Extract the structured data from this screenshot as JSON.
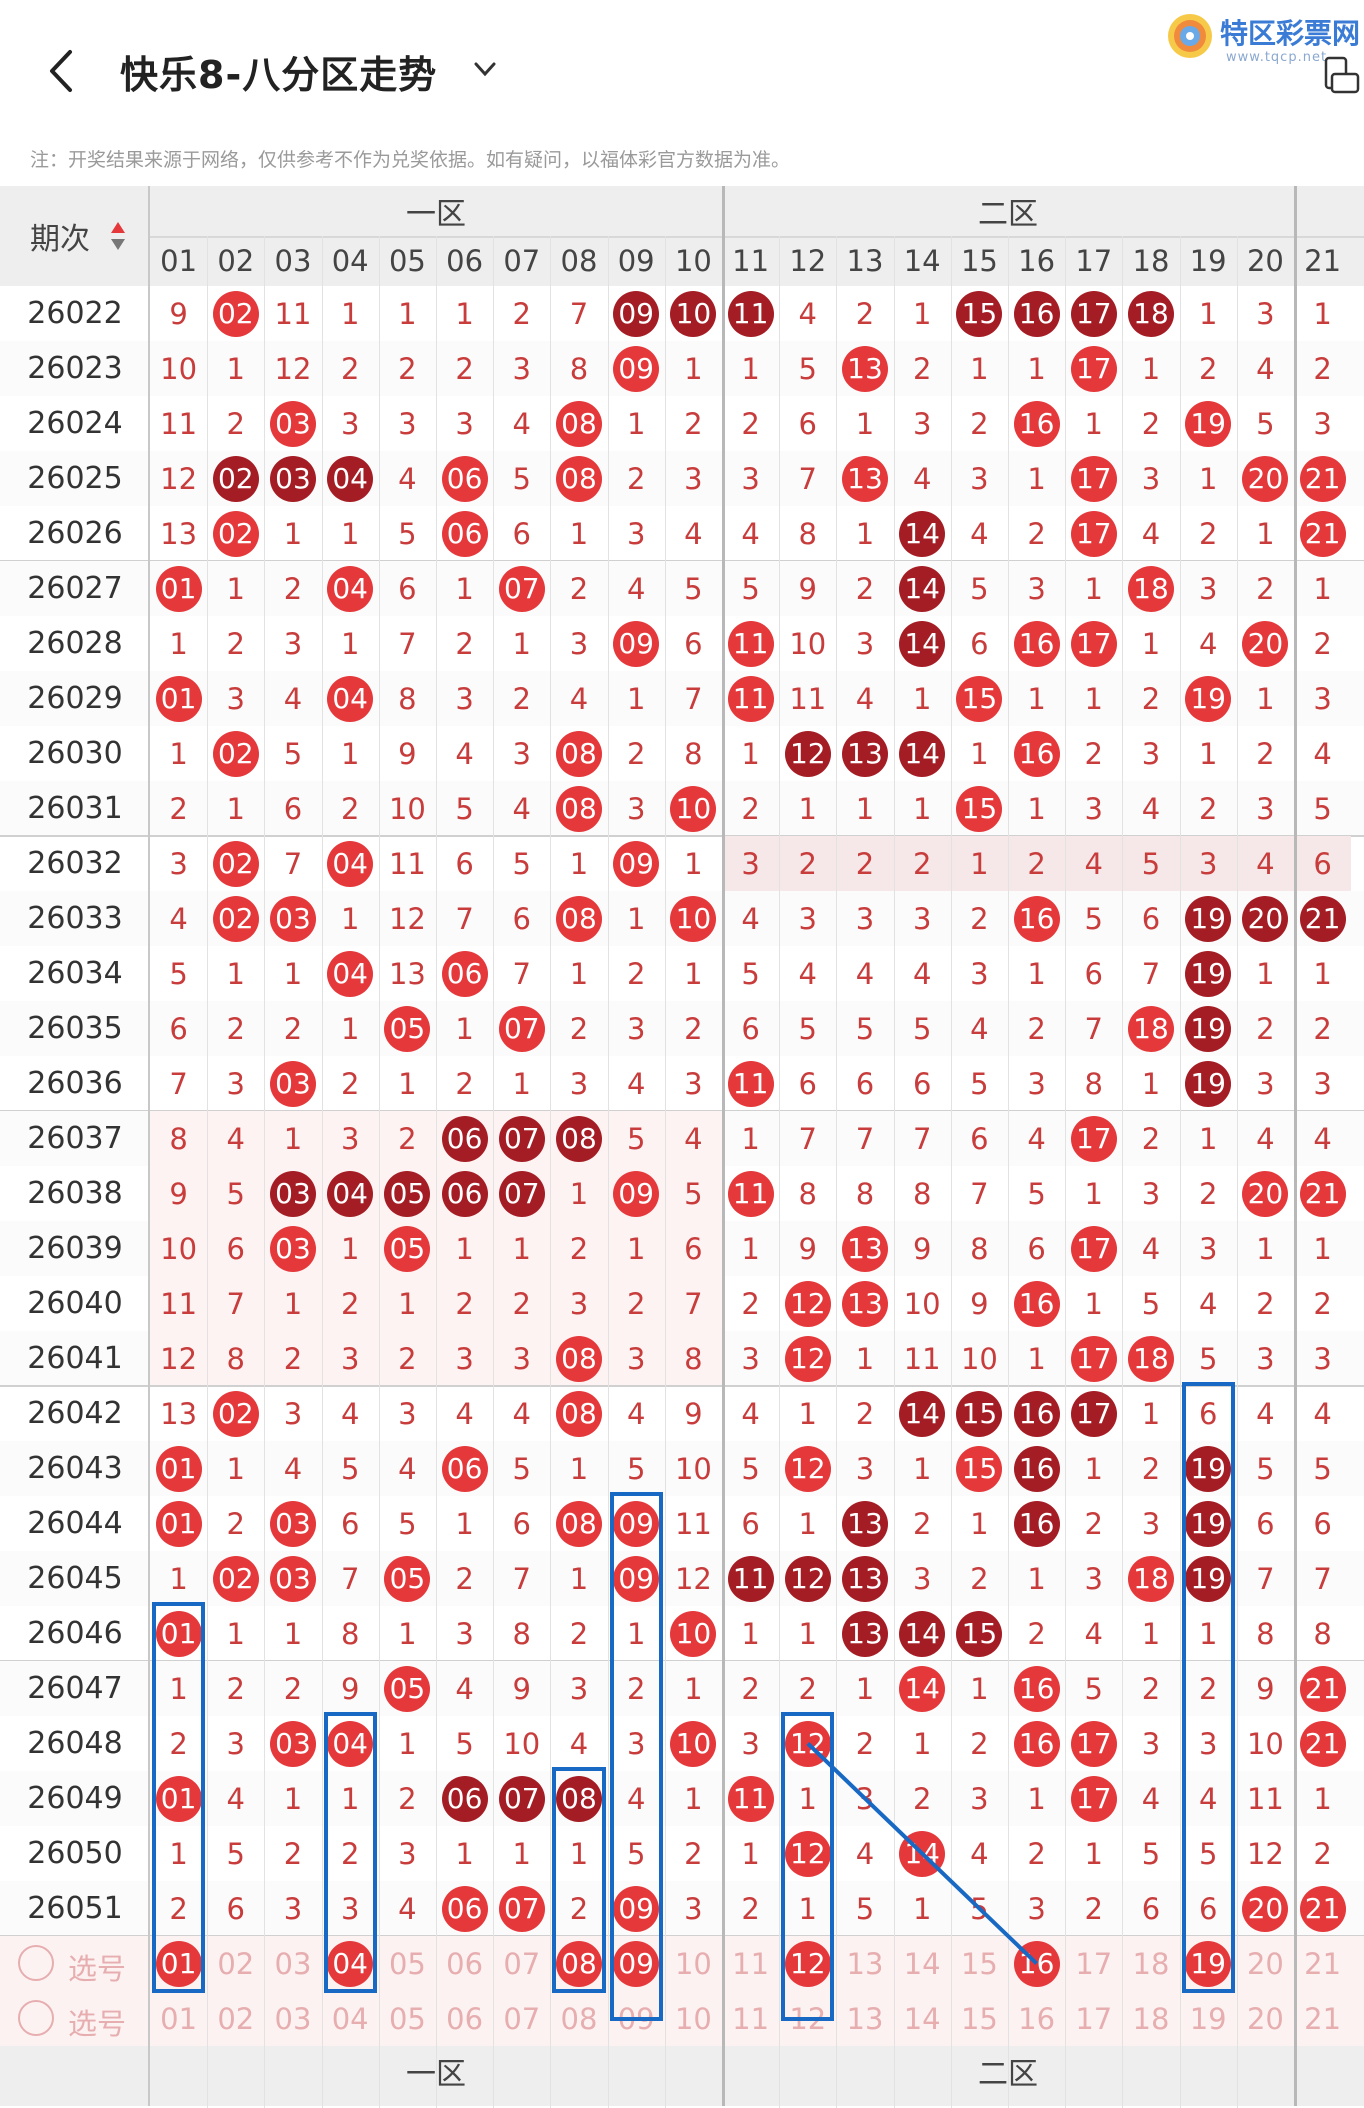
{
  "header": {
    "title": "快乐8-八分区走势",
    "logo_text": "特区彩票网",
    "logo_url": "www.tqcp.net",
    "notice": "注：开奖结果来源于网络，仅供参考不作为兑奖依据。如有疑问，以福体彩官方数据为准。"
  },
  "table": {
    "period_header": "期次",
    "zones": [
      "一区",
      "二区"
    ],
    "columns": [
      "01",
      "02",
      "03",
      "04",
      "05",
      "06",
      "07",
      "08",
      "09",
      "10",
      "11",
      "12",
      "13",
      "14",
      "15",
      "16",
      "17",
      "18",
      "19",
      "20",
      "21"
    ],
    "rows": [
      {
        "period": "26022",
        "cells": [
          "9",
          "02",
          "11",
          "1",
          "1",
          "1",
          "2",
          "7",
          "09",
          "10",
          "11",
          "4",
          "2",
          "1",
          "15",
          "16",
          "17",
          "18",
          "1",
          "3",
          "1"
        ],
        "hits": [
          2,
          9,
          10,
          11,
          15,
          16,
          17,
          18
        ],
        "dark": [
          9,
          10,
          11,
          15,
          16,
          17,
          18
        ]
      },
      {
        "period": "26023",
        "cells": [
          "10",
          "1",
          "12",
          "2",
          "2",
          "2",
          "3",
          "8",
          "09",
          "1",
          "1",
          "5",
          "13",
          "2",
          "1",
          "1",
          "17",
          "1",
          "2",
          "4",
          "2"
        ],
        "hits": [
          9,
          13,
          17
        ],
        "dark": []
      },
      {
        "period": "26024",
        "cells": [
          "11",
          "2",
          "03",
          "3",
          "3",
          "3",
          "4",
          "08",
          "1",
          "2",
          "2",
          "6",
          "1",
          "3",
          "2",
          "16",
          "1",
          "2",
          "19",
          "5",
          "3"
        ],
        "hits": [
          3,
          8,
          16,
          19
        ],
        "dark": []
      },
      {
        "period": "26025",
        "cells": [
          "12",
          "02",
          "03",
          "04",
          "4",
          "06",
          "5",
          "08",
          "2",
          "3",
          "3",
          "7",
          "13",
          "4",
          "3",
          "1",
          "17",
          "3",
          "1",
          "20",
          "21"
        ],
        "hits": [
          2,
          3,
          4,
          6,
          8,
          13,
          17,
          20,
          21
        ],
        "dark": [
          2,
          3,
          4
        ]
      },
      {
        "period": "26026",
        "cells": [
          "13",
          "02",
          "1",
          "1",
          "5",
          "06",
          "6",
          "1",
          "3",
          "4",
          "4",
          "8",
          "1",
          "14",
          "4",
          "2",
          "17",
          "4",
          "2",
          "1",
          "21"
        ],
        "hits": [
          2,
          6,
          14,
          17,
          21
        ],
        "dark": [
          14
        ]
      },
      {
        "period": "26027",
        "cells": [
          "01",
          "1",
          "2",
          "04",
          "6",
          "1",
          "07",
          "2",
          "4",
          "5",
          "5",
          "9",
          "2",
          "14",
          "5",
          "3",
          "1",
          "18",
          "3",
          "2",
          "1"
        ],
        "hits": [
          1,
          4,
          7,
          14,
          18
        ],
        "dark": [
          14
        ]
      },
      {
        "period": "26028",
        "cells": [
          "1",
          "2",
          "3",
          "1",
          "7",
          "2",
          "1",
          "3",
          "09",
          "6",
          "11",
          "10",
          "3",
          "14",
          "6",
          "16",
          "17",
          "1",
          "4",
          "20",
          "2"
        ],
        "hits": [
          9,
          11,
          14,
          16,
          17,
          20
        ],
        "dark": [
          14
        ]
      },
      {
        "period": "26029",
        "cells": [
          "01",
          "3",
          "4",
          "04",
          "8",
          "3",
          "2",
          "4",
          "1",
          "7",
          "11",
          "11",
          "4",
          "1",
          "15",
          "1",
          "1",
          "2",
          "19",
          "1",
          "3"
        ],
        "hits": [
          1,
          4,
          11,
          15,
          19
        ],
        "dark": []
      },
      {
        "period": "26030",
        "cells": [
          "1",
          "02",
          "5",
          "1",
          "9",
          "4",
          "3",
          "08",
          "2",
          "8",
          "1",
          "12",
          "13",
          "14",
          "1",
          "16",
          "2",
          "3",
          "1",
          "2",
          "4"
        ],
        "hits": [
          2,
          8,
          12,
          13,
          14,
          16
        ],
        "dark": [
          12,
          13,
          14
        ]
      },
      {
        "period": "26031",
        "cells": [
          "2",
          "1",
          "6",
          "2",
          "10",
          "5",
          "4",
          "08",
          "3",
          "10",
          "2",
          "1",
          "1",
          "1",
          "15",
          "1",
          "3",
          "4",
          "2",
          "3",
          "5"
        ],
        "hits": [
          8,
          10,
          15
        ],
        "dark": []
      },
      {
        "period": "26032",
        "cells": [
          "3",
          "02",
          "7",
          "04",
          "11",
          "6",
          "5",
          "1",
          "09",
          "1",
          "3",
          "2",
          "2",
          "2",
          "1",
          "2",
          "4",
          "5",
          "3",
          "4",
          "6"
        ],
        "hits": [
          2,
          4,
          9
        ],
        "dark": []
      },
      {
        "period": "26033",
        "cells": [
          "4",
          "02",
          "03",
          "1",
          "12",
          "7",
          "6",
          "08",
          "1",
          "10",
          "4",
          "3",
          "3",
          "3",
          "2",
          "16",
          "5",
          "6",
          "19",
          "20",
          "21"
        ],
        "hits": [
          2,
          3,
          8,
          10,
          16,
          19,
          20,
          21
        ],
        "dark": [
          19,
          20,
          21
        ]
      },
      {
        "period": "26034",
        "cells": [
          "5",
          "1",
          "1",
          "04",
          "13",
          "06",
          "7",
          "1",
          "2",
          "1",
          "5",
          "4",
          "4",
          "4",
          "3",
          "1",
          "6",
          "7",
          "19",
          "1",
          "1"
        ],
        "hits": [
          4,
          6,
          19
        ],
        "dark": [
          19
        ]
      },
      {
        "period": "26035",
        "cells": [
          "6",
          "2",
          "2",
          "1",
          "05",
          "1",
          "07",
          "2",
          "3",
          "2",
          "6",
          "5",
          "5",
          "5",
          "4",
          "2",
          "7",
          "18",
          "19",
          "2",
          "2"
        ],
        "hits": [
          5,
          7,
          18,
          19
        ],
        "dark": [
          19
        ]
      },
      {
        "period": "26036",
        "cells": [
          "7",
          "3",
          "03",
          "2",
          "1",
          "2",
          "1",
          "3",
          "4",
          "3",
          "11",
          "6",
          "6",
          "6",
          "5",
          "3",
          "8",
          "1",
          "19",
          "3",
          "3"
        ],
        "hits": [
          3,
          11,
          19
        ],
        "dark": [
          19
        ]
      },
      {
        "period": "26037",
        "cells": [
          "8",
          "4",
          "1",
          "3",
          "2",
          "06",
          "07",
          "08",
          "5",
          "4",
          "1",
          "7",
          "7",
          "7",
          "6",
          "4",
          "17",
          "2",
          "1",
          "4",
          "4"
        ],
        "hits": [
          6,
          7,
          8,
          17
        ],
        "dark": [
          6,
          7,
          8
        ]
      },
      {
        "period": "26038",
        "cells": [
          "9",
          "5",
          "03",
          "04",
          "05",
          "06",
          "07",
          "1",
          "09",
          "5",
          "11",
          "8",
          "8",
          "8",
          "7",
          "5",
          "1",
          "3",
          "2",
          "20",
          "21"
        ],
        "hits": [
          3,
          4,
          5,
          6,
          7,
          9,
          11,
          20,
          21
        ],
        "dark": [
          3,
          4,
          5,
          6,
          7
        ]
      },
      {
        "period": "26039",
        "cells": [
          "10",
          "6",
          "03",
          "1",
          "05",
          "1",
          "1",
          "2",
          "1",
          "6",
          "1",
          "9",
          "13",
          "9",
          "8",
          "6",
          "17",
          "4",
          "3",
          "1",
          "1"
        ],
        "hits": [
          3,
          5,
          13,
          17
        ],
        "dark": []
      },
      {
        "period": "26040",
        "cells": [
          "11",
          "7",
          "1",
          "2",
          "1",
          "2",
          "2",
          "3",
          "2",
          "7",
          "2",
          "12",
          "13",
          "10",
          "9",
          "16",
          "1",
          "5",
          "4",
          "2",
          "2"
        ],
        "hits": [
          12,
          13,
          16
        ],
        "dark": []
      },
      {
        "period": "26041",
        "cells": [
          "12",
          "8",
          "2",
          "3",
          "2",
          "3",
          "3",
          "08",
          "3",
          "8",
          "3",
          "12",
          "1",
          "11",
          "10",
          "1",
          "17",
          "18",
          "5",
          "3",
          "3"
        ],
        "hits": [
          8,
          12,
          17,
          18
        ],
        "dark": []
      },
      {
        "period": "26042",
        "cells": [
          "13",
          "02",
          "3",
          "4",
          "3",
          "4",
          "4",
          "08",
          "4",
          "9",
          "4",
          "1",
          "2",
          "14",
          "15",
          "16",
          "17",
          "1",
          "6",
          "4",
          "4"
        ],
        "hits": [
          2,
          8,
          14,
          15,
          16,
          17
        ],
        "dark": [
          14,
          15,
          16,
          17
        ]
      },
      {
        "period": "26043",
        "cells": [
          "01",
          "1",
          "4",
          "5",
          "4",
          "06",
          "5",
          "1",
          "5",
          "10",
          "5",
          "12",
          "3",
          "1",
          "15",
          "16",
          "1",
          "2",
          "19",
          "5",
          "5"
        ],
        "hits": [
          1,
          6,
          12,
          15,
          16,
          19
        ],
        "dark": [
          16,
          19
        ]
      },
      {
        "period": "26044",
        "cells": [
          "01",
          "2",
          "03",
          "6",
          "5",
          "1",
          "6",
          "08",
          "09",
          "11",
          "6",
          "1",
          "13",
          "2",
          "1",
          "16",
          "2",
          "3",
          "19",
          "6",
          "6"
        ],
        "hits": [
          1,
          3,
          8,
          9,
          13,
          16,
          19
        ],
        "dark": [
          13,
          16,
          19
        ]
      },
      {
        "period": "26045",
        "cells": [
          "1",
          "02",
          "03",
          "7",
          "05",
          "2",
          "7",
          "1",
          "09",
          "12",
          "11",
          "12",
          "13",
          "3",
          "2",
          "1",
          "3",
          "18",
          "19",
          "7",
          "7"
        ],
        "hits": [
          2,
          3,
          5,
          9,
          11,
          12,
          13,
          18,
          19
        ],
        "dark": [
          11,
          12,
          13,
          19
        ]
      },
      {
        "period": "26046",
        "cells": [
          "01",
          "1",
          "1",
          "8",
          "1",
          "3",
          "8",
          "2",
          "1",
          "10",
          "1",
          "1",
          "13",
          "14",
          "15",
          "2",
          "4",
          "1",
          "1",
          "8",
          "8"
        ],
        "hits": [
          1,
          10,
          13,
          14,
          15
        ],
        "dark": [
          13,
          14,
          15
        ]
      },
      {
        "period": "26047",
        "cells": [
          "1",
          "2",
          "2",
          "9",
          "05",
          "4",
          "9",
          "3",
          "2",
          "1",
          "2",
          "2",
          "1",
          "14",
          "1",
          "16",
          "5",
          "2",
          "2",
          "9",
          "21"
        ],
        "hits": [
          5,
          14,
          16,
          21
        ],
        "dark": []
      },
      {
        "period": "26048",
        "cells": [
          "2",
          "3",
          "03",
          "04",
          "1",
          "5",
          "10",
          "4",
          "3",
          "10",
          "3",
          "12",
          "2",
          "1",
          "2",
          "16",
          "17",
          "3",
          "3",
          "10",
          "21"
        ],
        "hits": [
          3,
          4,
          10,
          12,
          16,
          17,
          21
        ],
        "dark": []
      },
      {
        "period": "26049",
        "cells": [
          "01",
          "4",
          "1",
          "1",
          "2",
          "06",
          "07",
          "08",
          "4",
          "1",
          "11",
          "1",
          "3",
          "2",
          "3",
          "1",
          "17",
          "4",
          "4",
          "11",
          "1"
        ],
        "hits": [
          1,
          6,
          7,
          8,
          11,
          17
        ],
        "dark": [
          6,
          7,
          8
        ]
      },
      {
        "period": "26050",
        "cells": [
          "1",
          "5",
          "2",
          "2",
          "3",
          "1",
          "1",
          "1",
          "5",
          "2",
          "1",
          "12",
          "4",
          "14",
          "4",
          "2",
          "1",
          "5",
          "5",
          "12",
          "2"
        ],
        "hits": [
          12,
          14
        ],
        "dark": []
      },
      {
        "period": "26051",
        "cells": [
          "2",
          "6",
          "3",
          "3",
          "4",
          "06",
          "07",
          "2",
          "09",
          "3",
          "2",
          "1",
          "5",
          "1",
          "5",
          "3",
          "2",
          "6",
          "6",
          "20",
          "21"
        ],
        "hits": [
          6,
          7,
          9,
          20,
          21
        ],
        "dark": []
      }
    ],
    "select_rows": [
      {
        "label": "选号",
        "hits": [
          1,
          4,
          8,
          9,
          12,
          16,
          19
        ]
      },
      {
        "label": "选号",
        "hits": []
      }
    ]
  }
}
